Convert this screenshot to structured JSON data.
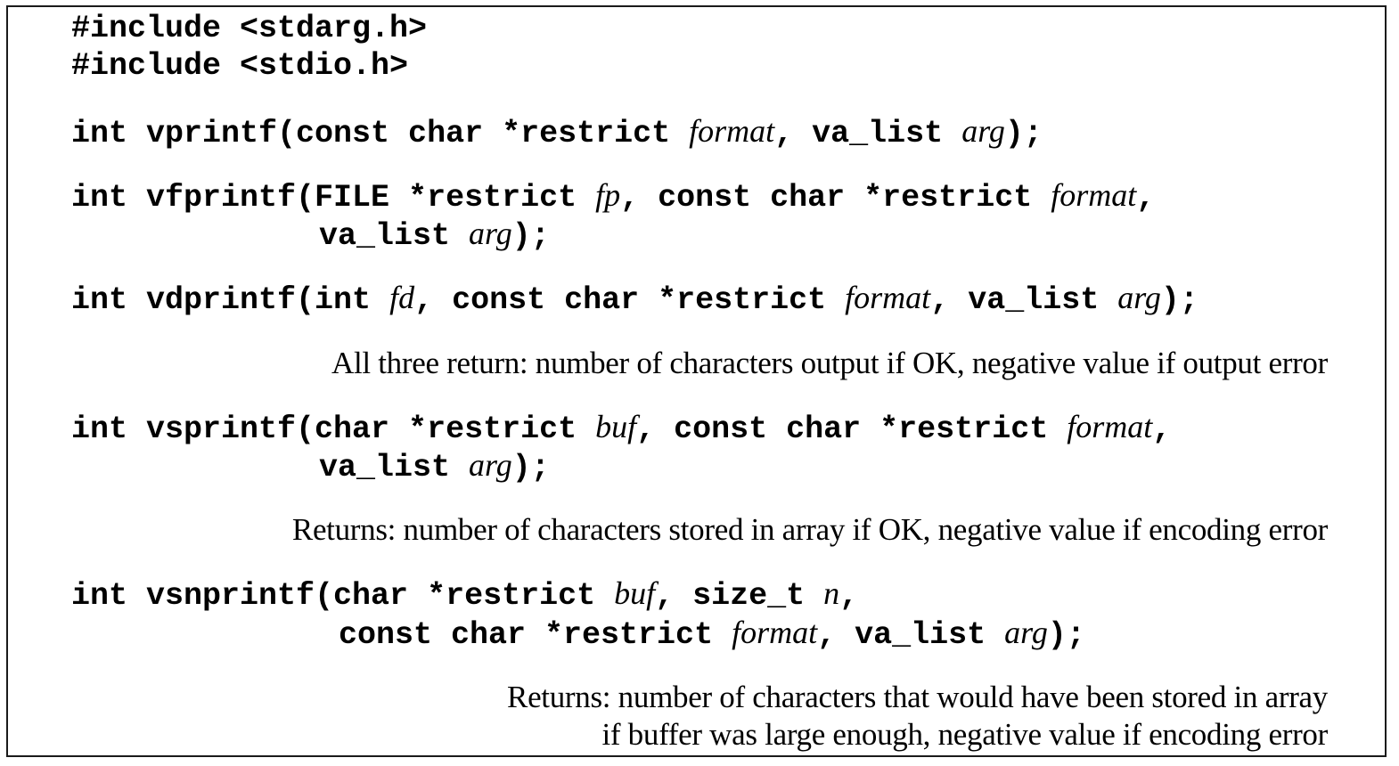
{
  "includes": [
    "#include <stdarg.h>",
    "#include <stdio.h>"
  ],
  "vprintf": {
    "t1": "int vprintf(const char *restrict ",
    "p_format": "format",
    "t2": ", va_list ",
    "p_arg": "arg",
    "t3": ");"
  },
  "vfprintf": {
    "t1": "int vfprintf(FILE *restrict ",
    "p_fp": "fp",
    "t2": ", const char *restrict ",
    "p_format": "format",
    "t3": ",",
    "t4": "va_list ",
    "p_arg": "arg",
    "t5": ");"
  },
  "vdprintf": {
    "t1": "int vdprintf(int ",
    "p_fd": "fd",
    "t2": ", const char *restrict ",
    "p_format": "format",
    "t3": ", va_list ",
    "p_arg": "arg",
    "t4": ");"
  },
  "returns_three": "All three return: number of characters output if OK, negative value if output error",
  "vsprintf": {
    "t1": "int vsprintf(char *restrict ",
    "p_buf": "buf",
    "t2": ", const char *restrict ",
    "p_format": "format",
    "t3": ",",
    "t4": "va_list ",
    "p_arg": "arg",
    "t5": ");"
  },
  "returns_vsprintf": "Returns: number of characters stored in array if OK, negative value if encoding error",
  "vsnprintf": {
    "t1": "int vsnprintf(char *restrict ",
    "p_buf": "buf",
    "t2": ", size_t ",
    "p_n": "n",
    "t3": ",",
    "t4": "const char *restrict ",
    "p_format": "format",
    "t5": ", va_list ",
    "p_arg": "arg",
    "t6": ");"
  },
  "returns_vsnprintf": [
    "Returns: number of characters that would have been stored in array",
    "if buffer was large enough, negative value if encoding error"
  ]
}
